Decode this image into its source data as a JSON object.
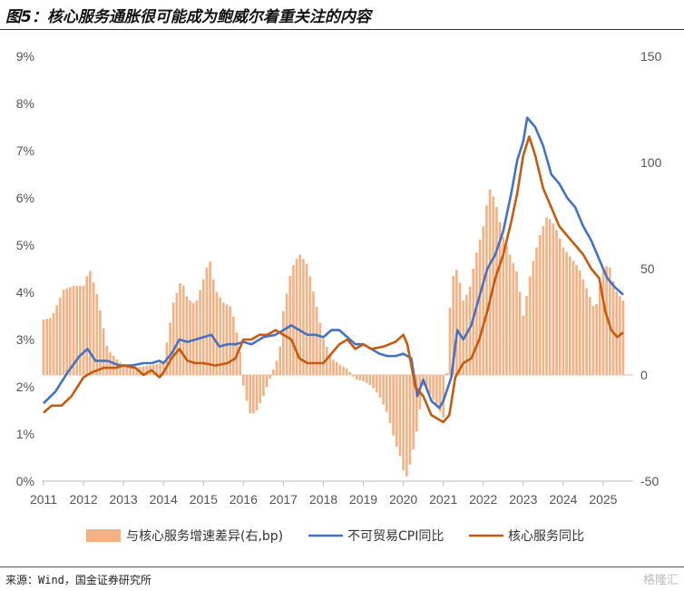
{
  "header": {
    "title": "图5：核心服务通胀很可能成为鲍威尔着重关注的内容"
  },
  "footer": {
    "source": "来源：Wind，国金证券研究所",
    "watermark": "格隆汇"
  },
  "chart_data": {
    "type": "bar+line",
    "x_ticks": [
      "2011",
      "2012",
      "2013",
      "2014",
      "2015",
      "2016",
      "2017",
      "2018",
      "2019",
      "2020",
      "2021",
      "2022",
      "2023",
      "2024",
      "2025"
    ],
    "left_axis": {
      "ticks": [
        "0%",
        "1%",
        "2%",
        "3%",
        "4%",
        "5%",
        "6%",
        "7%",
        "8%",
        "9%"
      ],
      "range": [
        0,
        9
      ]
    },
    "right_axis": {
      "ticks": [
        "-50",
        "0",
        "50",
        "100",
        "150"
      ],
      "range": [
        -50,
        150
      ]
    },
    "bar_color": "#f4b183",
    "series": [
      {
        "name": "与核心服务增速差异(右,bp)",
        "axis": "right",
        "kind": "bar",
        "color": "#f4b183",
        "knots": [
          [
            2011.0,
            26
          ],
          [
            2011.2,
            27
          ],
          [
            2011.5,
            40
          ],
          [
            2011.75,
            42
          ],
          [
            2012.0,
            42
          ],
          [
            2012.15,
            50
          ],
          [
            2012.35,
            37
          ],
          [
            2012.6,
            12
          ],
          [
            2012.9,
            6
          ],
          [
            2013.2,
            3
          ],
          [
            2013.5,
            4
          ],
          [
            2013.8,
            5
          ],
          [
            2014.0,
            6
          ],
          [
            2014.25,
            34
          ],
          [
            2014.45,
            45
          ],
          [
            2014.6,
            36
          ],
          [
            2014.8,
            33
          ],
          [
            2015.0,
            45
          ],
          [
            2015.15,
            55
          ],
          [
            2015.3,
            40
          ],
          [
            2015.5,
            34
          ],
          [
            2015.7,
            32
          ],
          [
            2015.9,
            14
          ],
          [
            2016.0,
            -5
          ],
          [
            2016.15,
            -18
          ],
          [
            2016.3,
            -18
          ],
          [
            2016.5,
            -10
          ],
          [
            2016.7,
            0
          ],
          [
            2016.9,
            10
          ],
          [
            2017.0,
            30
          ],
          [
            2017.2,
            50
          ],
          [
            2017.4,
            57
          ],
          [
            2017.6,
            52
          ],
          [
            2017.8,
            35
          ],
          [
            2018.0,
            17
          ],
          [
            2018.2,
            8
          ],
          [
            2018.4,
            5
          ],
          [
            2018.6,
            3
          ],
          [
            2018.8,
            -2
          ],
          [
            2019.0,
            -3
          ],
          [
            2019.2,
            -5
          ],
          [
            2019.4,
            -10
          ],
          [
            2019.6,
            -18
          ],
          [
            2019.8,
            -32
          ],
          [
            2019.95,
            -40
          ],
          [
            2020.05,
            -50
          ],
          [
            2020.2,
            -40
          ],
          [
            2020.35,
            -25
          ],
          [
            2020.5,
            -5
          ],
          [
            2020.7,
            -10
          ],
          [
            2020.85,
            -15
          ],
          [
            2021.0,
            -20
          ],
          [
            2021.1,
            5
          ],
          [
            2021.2,
            45
          ],
          [
            2021.35,
            50
          ],
          [
            2021.5,
            35
          ],
          [
            2021.65,
            40
          ],
          [
            2021.8,
            55
          ],
          [
            2022.0,
            70
          ],
          [
            2022.15,
            88
          ],
          [
            2022.3,
            82
          ],
          [
            2022.5,
            65
          ],
          [
            2022.7,
            55
          ],
          [
            2022.85,
            48
          ],
          [
            2023.0,
            28
          ],
          [
            2023.2,
            50
          ],
          [
            2023.4,
            65
          ],
          [
            2023.6,
            75
          ],
          [
            2023.8,
            70
          ],
          [
            2024.0,
            60
          ],
          [
            2024.2,
            55
          ],
          [
            2024.4,
            50
          ],
          [
            2024.6,
            40
          ],
          [
            2024.8,
            30
          ],
          [
            2025.0,
            50
          ],
          [
            2025.15,
            52
          ],
          [
            2025.3,
            40
          ],
          [
            2025.5,
            35
          ]
        ],
        "knots_note": "[year, bp]"
      },
      {
        "name": "不可贸易CPI同比",
        "axis": "left",
        "kind": "line",
        "color": "#4472c4",
        "knots": [
          [
            2011.0,
            1.65
          ],
          [
            2011.3,
            1.9
          ],
          [
            2011.6,
            2.3
          ],
          [
            2011.9,
            2.65
          ],
          [
            2012.1,
            2.8
          ],
          [
            2012.3,
            2.55
          ],
          [
            2012.6,
            2.55
          ],
          [
            2012.9,
            2.45
          ],
          [
            2013.2,
            2.45
          ],
          [
            2013.5,
            2.5
          ],
          [
            2013.7,
            2.5
          ],
          [
            2013.9,
            2.55
          ],
          [
            2014.0,
            2.5
          ],
          [
            2014.2,
            2.7
          ],
          [
            2014.4,
            3.0
          ],
          [
            2014.6,
            2.95
          ],
          [
            2014.8,
            3.0
          ],
          [
            2015.0,
            3.05
          ],
          [
            2015.2,
            3.1
          ],
          [
            2015.4,
            2.85
          ],
          [
            2015.6,
            2.9
          ],
          [
            2015.8,
            2.9
          ],
          [
            2016.0,
            2.95
          ],
          [
            2016.2,
            2.9
          ],
          [
            2016.5,
            3.05
          ],
          [
            2016.8,
            3.1
          ],
          [
            2017.0,
            3.2
          ],
          [
            2017.2,
            3.3
          ],
          [
            2017.4,
            3.2
          ],
          [
            2017.6,
            3.1
          ],
          [
            2017.8,
            3.1
          ],
          [
            2018.0,
            3.05
          ],
          [
            2018.2,
            3.2
          ],
          [
            2018.4,
            3.2
          ],
          [
            2018.6,
            3.05
          ],
          [
            2018.8,
            2.9
          ],
          [
            2019.0,
            2.9
          ],
          [
            2019.2,
            2.8
          ],
          [
            2019.4,
            2.7
          ],
          [
            2019.6,
            2.65
          ],
          [
            2019.8,
            2.65
          ],
          [
            2020.0,
            2.7
          ],
          [
            2020.2,
            2.6
          ],
          [
            2020.35,
            1.8
          ],
          [
            2020.5,
            2.15
          ],
          [
            2020.7,
            1.7
          ],
          [
            2020.9,
            1.55
          ],
          [
            2021.0,
            1.7
          ],
          [
            2021.2,
            2.2
          ],
          [
            2021.35,
            3.2
          ],
          [
            2021.5,
            3.0
          ],
          [
            2021.7,
            3.3
          ],
          [
            2021.9,
            3.9
          ],
          [
            2022.1,
            4.5
          ],
          [
            2022.3,
            4.8
          ],
          [
            2022.5,
            5.3
          ],
          [
            2022.7,
            6.1
          ],
          [
            2022.85,
            6.8
          ],
          [
            2023.0,
            7.2
          ],
          [
            2023.1,
            7.7
          ],
          [
            2023.3,
            7.5
          ],
          [
            2023.5,
            7.1
          ],
          [
            2023.7,
            6.5
          ],
          [
            2023.9,
            6.3
          ],
          [
            2024.1,
            6.0
          ],
          [
            2024.3,
            5.8
          ],
          [
            2024.5,
            5.4
          ],
          [
            2024.7,
            5.1
          ],
          [
            2024.9,
            4.7
          ],
          [
            2025.1,
            4.3
          ],
          [
            2025.3,
            4.1
          ],
          [
            2025.5,
            3.95
          ]
        ]
      },
      {
        "name": "核心服务同比",
        "axis": "left",
        "kind": "line",
        "color": "#c55a11",
        "knots": [
          [
            2011.0,
            1.45
          ],
          [
            2011.2,
            1.6
          ],
          [
            2011.45,
            1.6
          ],
          [
            2011.7,
            1.8
          ],
          [
            2012.0,
            2.2
          ],
          [
            2012.2,
            2.3
          ],
          [
            2012.5,
            2.4
          ],
          [
            2012.8,
            2.4
          ],
          [
            2013.0,
            2.45
          ],
          [
            2013.3,
            2.4
          ],
          [
            2013.5,
            2.25
          ],
          [
            2013.7,
            2.35
          ],
          [
            2013.9,
            2.2
          ],
          [
            2014.0,
            2.3
          ],
          [
            2014.2,
            2.6
          ],
          [
            2014.4,
            2.8
          ],
          [
            2014.6,
            2.55
          ],
          [
            2014.8,
            2.5
          ],
          [
            2015.0,
            2.5
          ],
          [
            2015.3,
            2.45
          ],
          [
            2015.6,
            2.5
          ],
          [
            2015.8,
            2.6
          ],
          [
            2016.0,
            3.0
          ],
          [
            2016.2,
            3.0
          ],
          [
            2016.4,
            3.1
          ],
          [
            2016.6,
            3.1
          ],
          [
            2016.8,
            3.2
          ],
          [
            2017.0,
            3.1
          ],
          [
            2017.2,
            3.0
          ],
          [
            2017.4,
            2.6
          ],
          [
            2017.6,
            2.5
          ],
          [
            2017.8,
            2.5
          ],
          [
            2018.0,
            2.5
          ],
          [
            2018.2,
            2.7
          ],
          [
            2018.4,
            2.9
          ],
          [
            2018.6,
            3.0
          ],
          [
            2018.8,
            2.8
          ],
          [
            2019.0,
            2.9
          ],
          [
            2019.2,
            2.8
          ],
          [
            2019.5,
            2.85
          ],
          [
            2019.8,
            2.95
          ],
          [
            2020.0,
            3.1
          ],
          [
            2020.1,
            2.9
          ],
          [
            2020.3,
            2.0
          ],
          [
            2020.5,
            1.8
          ],
          [
            2020.7,
            1.4
          ],
          [
            2020.9,
            1.3
          ],
          [
            2021.0,
            1.25
          ],
          [
            2021.15,
            1.4
          ],
          [
            2021.3,
            2.2
          ],
          [
            2021.5,
            2.5
          ],
          [
            2021.7,
            2.6
          ],
          [
            2021.9,
            3.0
          ],
          [
            2022.1,
            3.6
          ],
          [
            2022.3,
            4.3
          ],
          [
            2022.5,
            4.8
          ],
          [
            2022.7,
            5.5
          ],
          [
            2022.85,
            6.1
          ],
          [
            2023.0,
            6.9
          ],
          [
            2023.15,
            7.3
          ],
          [
            2023.3,
            6.9
          ],
          [
            2023.5,
            6.2
          ],
          [
            2023.7,
            5.8
          ],
          [
            2023.9,
            5.4
          ],
          [
            2024.1,
            5.2
          ],
          [
            2024.3,
            5.0
          ],
          [
            2024.5,
            4.8
          ],
          [
            2024.7,
            4.5
          ],
          [
            2024.9,
            4.3
          ],
          [
            2025.05,
            3.6
          ],
          [
            2025.2,
            3.2
          ],
          [
            2025.35,
            3.05
          ],
          [
            2025.5,
            3.15
          ]
        ]
      }
    ],
    "legend_position": "bottom"
  }
}
